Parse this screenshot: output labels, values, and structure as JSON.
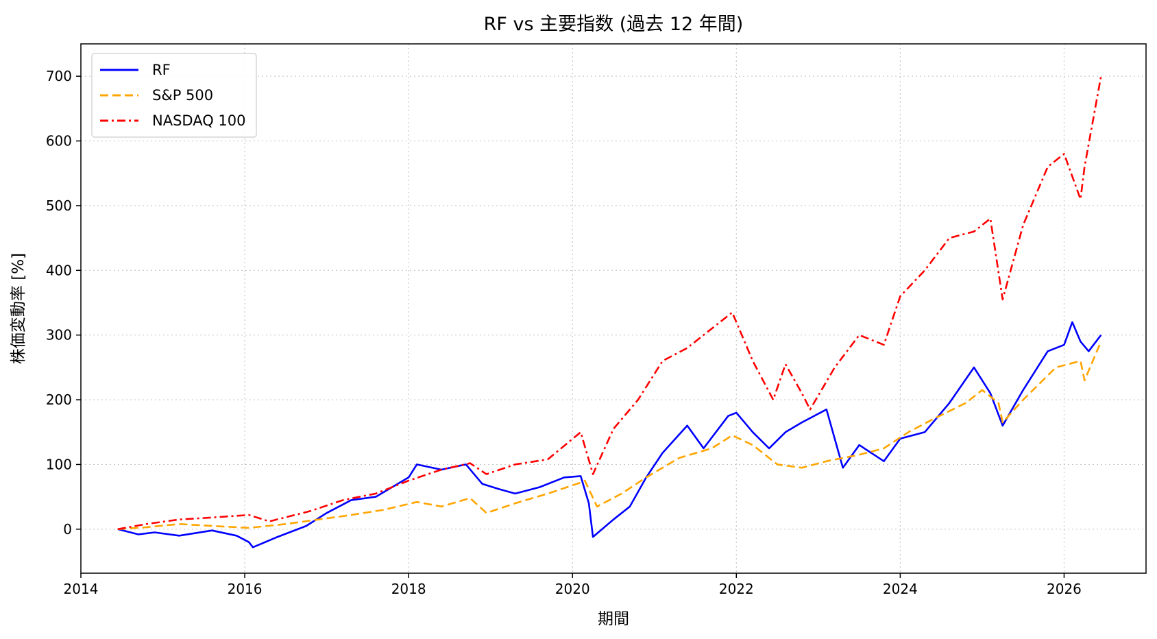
{
  "chart_data": {
    "type": "line",
    "title": "RF vs 主要指数 (過去 12 年間)",
    "xlabel": "期間",
    "ylabel": "株価変動率 [%]",
    "xlim": [
      2014.0,
      2027.0
    ],
    "ylim": [
      -68,
      750
    ],
    "x_ticks": [
      2014,
      2016,
      2018,
      2020,
      2022,
      2024,
      2026
    ],
    "x_tick_labels": [
      "2014",
      "2016",
      "2018",
      "2020",
      "2022",
      "2024",
      "2026"
    ],
    "y_ticks": [
      0,
      100,
      200,
      300,
      400,
      500,
      600,
      700
    ],
    "y_tick_labels": [
      "0",
      "100",
      "200",
      "300",
      "400",
      "500",
      "600",
      "700"
    ],
    "grid": true,
    "legend_position": "top-left",
    "series": [
      {
        "name": "RF",
        "color": "#0000ff",
        "style": "solid",
        "x": [
          2014.45,
          2014.7,
          2014.9,
          2015.2,
          2015.6,
          2015.9,
          2016.05,
          2016.1,
          2016.4,
          2016.75,
          2017.0,
          2017.3,
          2017.6,
          2018.0,
          2018.1,
          2018.4,
          2018.7,
          2018.9,
          2019.1,
          2019.3,
          2019.6,
          2019.9,
          2020.1,
          2020.2,
          2020.25,
          2020.5,
          2020.7,
          2020.9,
          2021.1,
          2021.4,
          2021.6,
          2021.9,
          2022.0,
          2022.2,
          2022.4,
          2022.6,
          2022.8,
          2023.1,
          2023.3,
          2023.5,
          2023.8,
          2024.0,
          2024.3,
          2024.6,
          2024.9,
          2025.1,
          2025.25,
          2025.5,
          2025.8,
          2026.0,
          2026.1,
          2026.2,
          2026.3,
          2026.45
        ],
        "values": [
          0,
          -8,
          -5,
          -10,
          -2,
          -10,
          -20,
          -28,
          -12,
          5,
          25,
          45,
          50,
          80,
          100,
          92,
          100,
          70,
          62,
          55,
          65,
          80,
          82,
          40,
          -12,
          15,
          35,
          80,
          118,
          160,
          125,
          175,
          180,
          150,
          125,
          150,
          165,
          185,
          95,
          130,
          105,
          140,
          150,
          195,
          250,
          210,
          160,
          215,
          275,
          285,
          320,
          290,
          275,
          300
        ]
      },
      {
        "name": "S&P 500",
        "color": "#ffa500",
        "style": "dashed",
        "x": [
          2014.45,
          2014.8,
          2015.2,
          2015.6,
          2016.05,
          2016.5,
          2016.9,
          2017.3,
          2017.7,
          2018.1,
          2018.4,
          2018.75,
          2018.95,
          2019.3,
          2019.7,
          2020.1,
          2020.15,
          2020.3,
          2020.6,
          2020.9,
          2021.3,
          2021.7,
          2021.95,
          2022.2,
          2022.5,
          2022.8,
          2023.1,
          2023.5,
          2023.8,
          2024.1,
          2024.4,
          2024.8,
          2025.0,
          2025.2,
          2025.25,
          2025.5,
          2025.9,
          2026.2,
          2026.25,
          2026.45
        ],
        "values": [
          0,
          3,
          8,
          5,
          2,
          8,
          15,
          22,
          30,
          42,
          35,
          48,
          25,
          40,
          55,
          72,
          75,
          35,
          55,
          80,
          110,
          125,
          145,
          130,
          100,
          95,
          105,
          115,
          125,
          150,
          170,
          195,
          215,
          195,
          165,
          200,
          250,
          260,
          230,
          290
        ]
      },
      {
        "name": "NASDAQ 100",
        "color": "#ff0000",
        "style": "dashdot",
        "x": [
          2014.45,
          2014.8,
          2015.2,
          2015.6,
          2016.05,
          2016.3,
          2016.8,
          2017.2,
          2017.6,
          2018.0,
          2018.4,
          2018.75,
          2018.95,
          2019.3,
          2019.7,
          2020.1,
          2020.25,
          2020.5,
          2020.8,
          2021.1,
          2021.4,
          2021.8,
          2021.95,
          2022.2,
          2022.45,
          2022.6,
          2022.8,
          2022.9,
          2023.2,
          2023.5,
          2023.8,
          2024.0,
          2024.3,
          2024.6,
          2024.9,
          2025.1,
          2025.25,
          2025.5,
          2025.8,
          2026.0,
          2026.2,
          2026.25,
          2026.45
        ],
        "values": [
          0,
          8,
          15,
          18,
          22,
          12,
          28,
          45,
          55,
          75,
          92,
          102,
          85,
          100,
          108,
          150,
          85,
          155,
          200,
          260,
          280,
          320,
          335,
          260,
          200,
          255,
          210,
          185,
          250,
          300,
          285,
          360,
          400,
          450,
          460,
          480,
          355,
          470,
          560,
          580,
          510,
          560,
          700
        ]
      }
    ]
  }
}
